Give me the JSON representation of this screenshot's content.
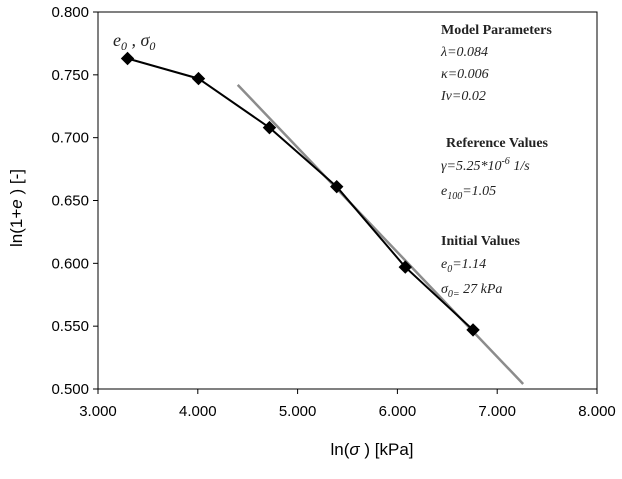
{
  "chart_data": {
    "type": "line",
    "xlabel_main": "ln(",
    "xlabel_symbol": "σ",
    "xlabel_tail": " ) [kPa]",
    "ylabel_main": "ln(1+",
    "ylabel_symbol": "e",
    "ylabel_tail": " )  [-]",
    "xlim": [
      3.0,
      8.0
    ],
    "ylim": [
      0.5,
      0.8
    ],
    "x_ticks": [
      "3.000",
      "4.000",
      "5.000",
      "6.000",
      "7.000",
      "8.000"
    ],
    "y_ticks": [
      "0.500",
      "0.550",
      "0.600",
      "0.650",
      "0.700",
      "0.750",
      "0.800"
    ],
    "grid": false,
    "series": [
      {
        "color": "#000000",
        "marker": "diamond",
        "x": [
          3.296,
          4.007,
          4.718,
          5.392,
          6.079,
          6.758
        ],
        "y": [
          0.763,
          0.747,
          0.708,
          0.661,
          0.597,
          0.547
        ]
      },
      {
        "color": "#8c8c8c",
        "marker": "none",
        "x": [
          4.4,
          7.26
        ],
        "y": [
          0.742,
          0.504
        ]
      }
    ],
    "point_label": {
      "e": "e",
      "e_sub": "0",
      "sep": " , ",
      "sigma": "σ",
      "sigma_sub": "0"
    },
    "annotations": {
      "model_title": "Model Parameters",
      "lambda": "λ=0.084",
      "kappa": "κ=0.006",
      "iv": "Iv=0.02",
      "reference_title": "Reference Values",
      "gamma_base": "γ=5.25*10",
      "gamma_exp": "-6",
      "gamma_unit": " 1/s",
      "e100_e": "e",
      "e100_sub": "100",
      "e100_val": "=1.05",
      "initial_title": "Initial Values",
      "e0_e": "e",
      "e0_sub": "0",
      "e0_val": "=1.14",
      "s0_sigma": "σ",
      "s0_sub": "0=",
      "s0_val": " 27 kPa"
    }
  }
}
